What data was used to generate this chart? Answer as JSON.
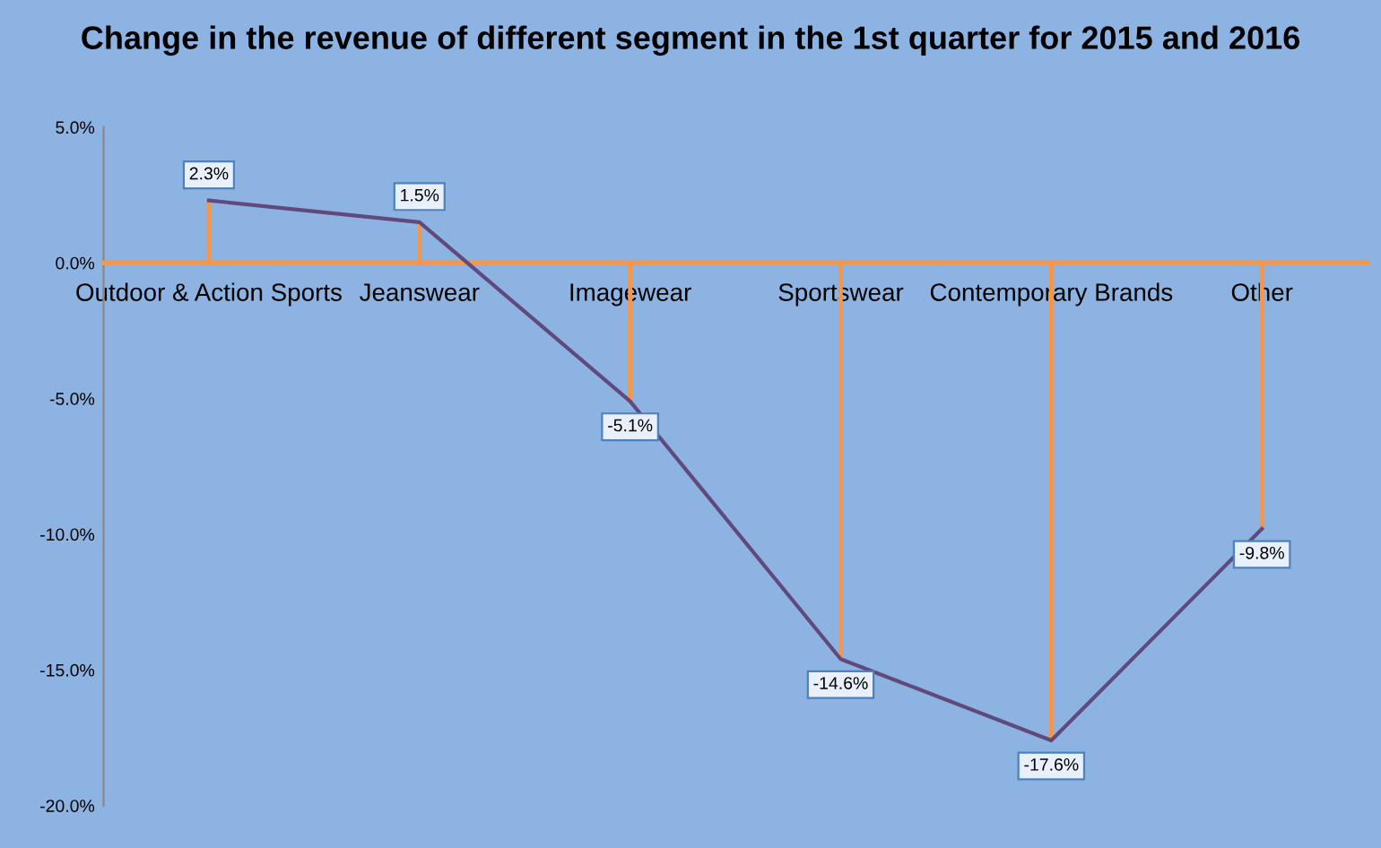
{
  "chart_data": {
    "type": "line",
    "title": "Change in the revenue of different segment in the 1st quarter for 2015 and 2016",
    "categories": [
      "Outdoor & Action Sports",
      "Jeanswear",
      "Imagewear",
      "Sportswear",
      "Contemporary Brands",
      "Other"
    ],
    "series": [
      {
        "type": "bar",
        "color": "#f79646",
        "values": [
          2.3,
          1.5,
          -5.1,
          -14.6,
          -17.6,
          -9.8
        ]
      },
      {
        "color": "#604a7b",
        "values": [
          2.3,
          1.5,
          -5.1,
          -14.6,
          -17.6,
          -9.8
        ],
        "value_labels": [
          "2.3%",
          "1.5%",
          "-5.1%",
          "-14.6%",
          "-17.6%",
          "-9.8%"
        ]
      }
    ],
    "ylim": [
      -20,
      5
    ],
    "yticks": [
      {
        "value": -20,
        "label": "-20.0%"
      },
      {
        "value": -15,
        "label": "-15.0%"
      },
      {
        "value": -10,
        "label": "-10.0%"
      },
      {
        "value": -5,
        "label": "-5.0%"
      },
      {
        "value": 0,
        "label": "0.0%"
      },
      {
        "value": 5,
        "label": "5.0%"
      }
    ],
    "grid": false,
    "legend": false,
    "line_style": "solid"
  }
}
